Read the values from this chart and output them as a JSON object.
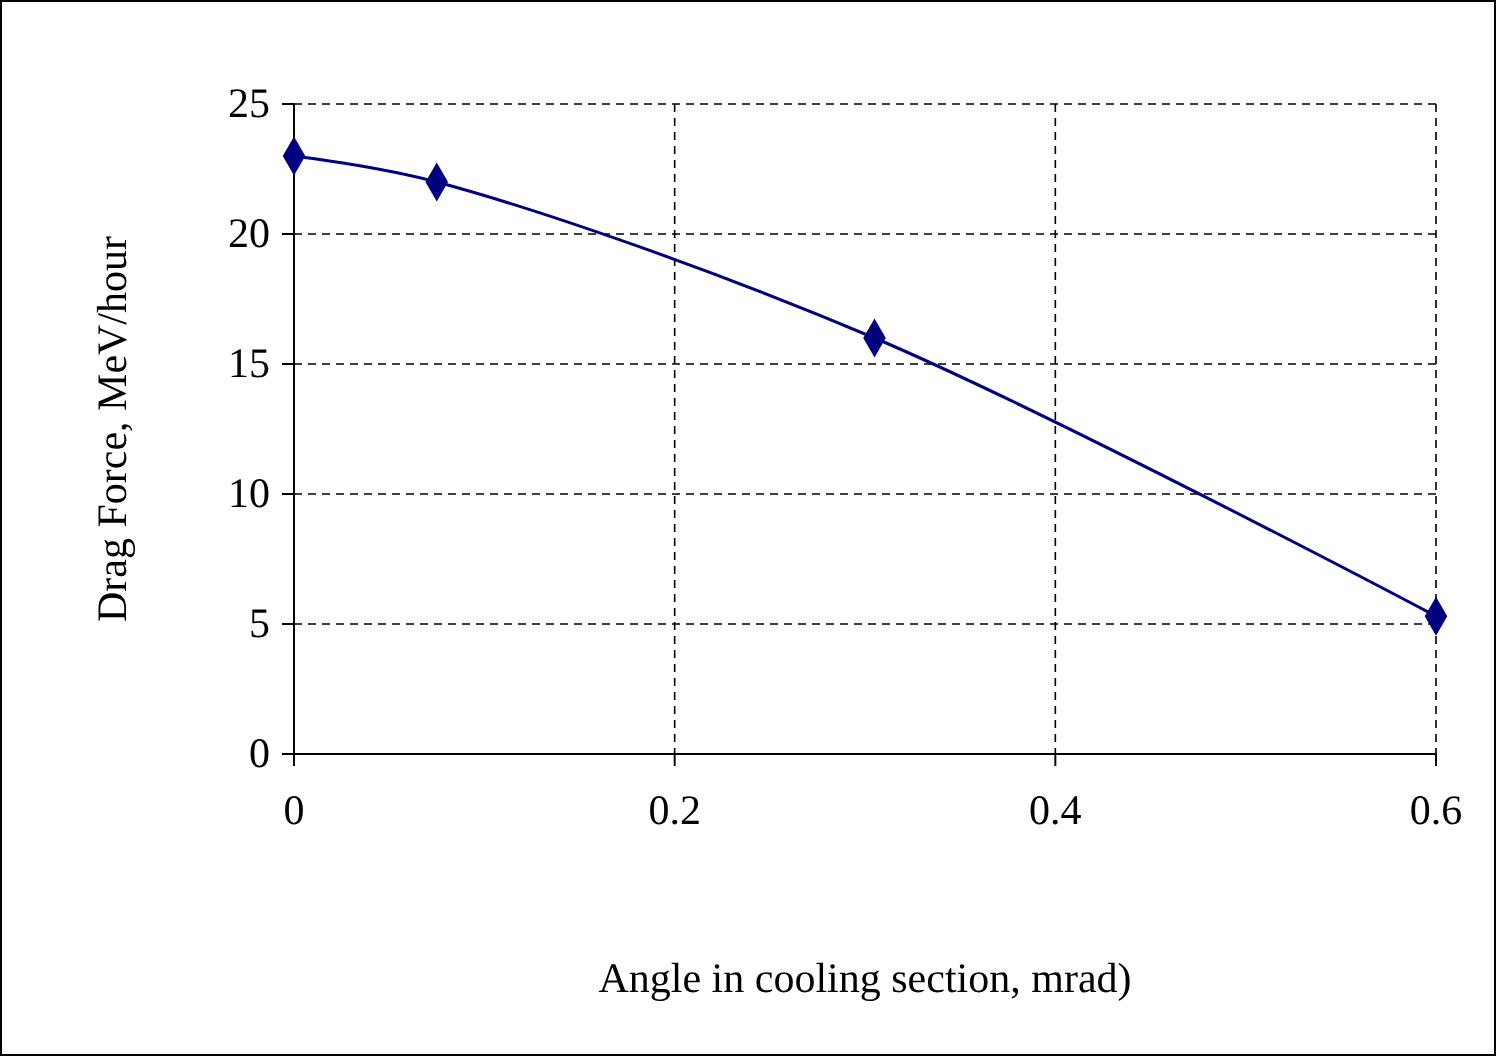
{
  "chart_data": {
    "type": "line",
    "xlabel": "Angle in cooling section, mrad)",
    "ylabel": "Drag Force, MeV/hour",
    "x": [
      0,
      0.075,
      0.305,
      0.6
    ],
    "series": [
      {
        "color": "#000080",
        "values": [
          23,
          22,
          16,
          5.3
        ]
      }
    ],
    "xlim": [
      0,
      0.6
    ],
    "xticks": [
      0,
      0.2,
      0.4,
      0.6
    ],
    "ylim": [
      0,
      25
    ],
    "yticks": [
      0,
      5,
      10,
      15,
      20,
      25
    ],
    "grid": true,
    "marker": "diamond",
    "line_style": "solid"
  }
}
